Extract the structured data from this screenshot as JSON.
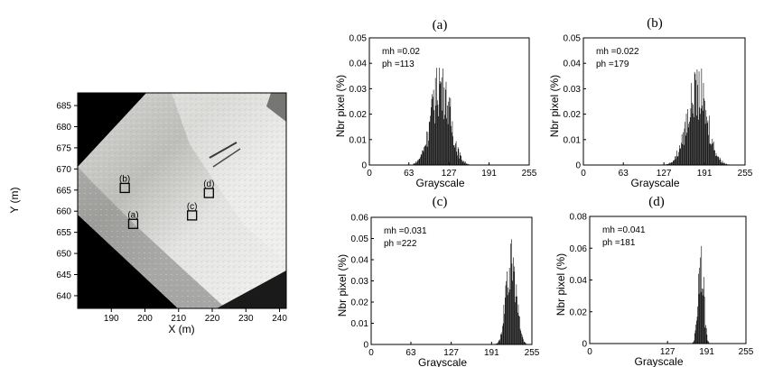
{
  "chart_data": [
    {
      "type": "image",
      "xlabel": "X (m)",
      "ylabel": "Y (m)",
      "xlim": [
        180,
        242
      ],
      "ylim": [
        637,
        688
      ],
      "xticks": [
        "190",
        "200",
        "210",
        "220",
        "230",
        "240"
      ],
      "yticks": [
        "640",
        "645",
        "650",
        "655",
        "660",
        "665",
        "670",
        "675",
        "680",
        "685"
      ],
      "markers": [
        {
          "label": "(a)",
          "x": 196.5,
          "y": 657
        },
        {
          "label": "(b)",
          "x": 194.0,
          "y": 665.5
        },
        {
          "label": "(c)",
          "x": 214.0,
          "y": 659
        },
        {
          "label": "(d)",
          "x": 219.0,
          "y": 664.3
        }
      ]
    },
    {
      "type": "bar",
      "panel_label": "(a)",
      "annotation": [
        "mh =0.02",
        "ph =113"
      ],
      "xlabel": "Grayscale",
      "ylabel": "Nbr pixel (%)",
      "xlim": [
        0,
        255
      ],
      "ylim": [
        0,
        0.05
      ],
      "xticks": [
        "0",
        "63",
        "127",
        "191",
        "255"
      ],
      "yticks": [
        "0",
        "0.01",
        "0.02",
        "0.03",
        "0.04",
        "0.05"
      ],
      "distribution": {
        "start": 70,
        "end": 160,
        "peak": 113,
        "sigma": 15,
        "max": 0.042
      }
    },
    {
      "type": "bar",
      "panel_label": "(b)",
      "annotation": [
        "mh =0.022",
        "ph =179"
      ],
      "xlabel": "Grayscale",
      "ylabel": "Nbr pixel (%)",
      "xlim": [
        0,
        255
      ],
      "ylim": [
        0,
        0.05
      ],
      "xticks": [
        "0",
        "63",
        "127",
        "191",
        "255"
      ],
      "yticks": [
        "0",
        "0.01",
        "0.02",
        "0.03",
        "0.04",
        "0.05"
      ],
      "distribution": {
        "start": 125,
        "end": 235,
        "peak": 179,
        "sigma": 16,
        "max": 0.038
      }
    },
    {
      "type": "bar",
      "panel_label": "(c)",
      "annotation": [
        "mh =0.031",
        "ph =222"
      ],
      "xlabel": "Grayscale",
      "ylabel": "Nbr pixel (%)",
      "xlim": [
        0,
        255
      ],
      "ylim": [
        0,
        0.06
      ],
      "xticks": [
        "0",
        "63",
        "127",
        "191",
        "255"
      ],
      "yticks": [
        "0",
        "0.01",
        "0.02",
        "0.03",
        "0.04",
        "0.05",
        "0.06"
      ],
      "distribution": {
        "start": 180,
        "end": 245,
        "peak": 222,
        "sigma": 8,
        "max": 0.051
      }
    },
    {
      "type": "bar",
      "panel_label": "(d)",
      "annotation": [
        "mh =0.041",
        "ph =181"
      ],
      "xlabel": "Grayscale",
      "ylabel": "Nbr pixel (%)",
      "xlim": [
        0,
        255
      ],
      "ylim": [
        0,
        0.08
      ],
      "xticks": [
        "0",
        "127",
        "191",
        "255"
      ],
      "yticks": [
        "0",
        "0.02",
        "0.04",
        "0.06",
        "0.08"
      ],
      "distribution": {
        "start": 160,
        "end": 200,
        "peak": 181,
        "sigma": 4.5,
        "max": 0.072
      }
    }
  ]
}
